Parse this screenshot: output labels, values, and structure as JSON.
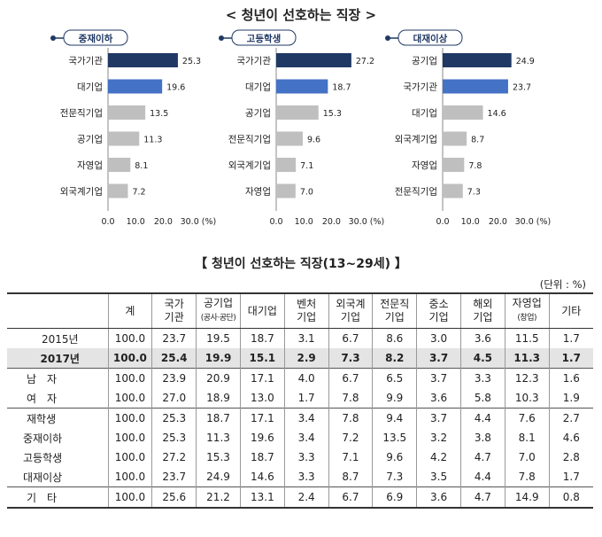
{
  "title": "< 청년이 선호하는 직장 >",
  "chart_data": [
    {
      "type": "bar",
      "orientation": "horizontal",
      "title": "중재이하",
      "categories": [
        "국가기관",
        "대기업",
        "전문직기업",
        "공기업",
        "자영업",
        "외국계기업"
      ],
      "values": [
        25.3,
        19.6,
        13.5,
        11.3,
        8.1,
        7.2
      ],
      "xlim": [
        0,
        30
      ],
      "xticks": [
        "0.0",
        "10.0",
        "20.0",
        "30.0 (%)"
      ],
      "colors": [
        "#1f3864",
        "#4472c4",
        "#bfbfbf",
        "#bfbfbf",
        "#bfbfbf",
        "#bfbfbf"
      ]
    },
    {
      "type": "bar",
      "orientation": "horizontal",
      "title": "고등학생",
      "categories": [
        "국가기관",
        "대기업",
        "공기업",
        "전문직기업",
        "외국계기업",
        "자영업"
      ],
      "values": [
        27.2,
        18.7,
        15.3,
        9.6,
        7.1,
        7.0
      ],
      "xlim": [
        0,
        30
      ],
      "xticks": [
        "0.0",
        "10.0",
        "20.0",
        "30.0 (%)"
      ],
      "colors": [
        "#1f3864",
        "#4472c4",
        "#bfbfbf",
        "#bfbfbf",
        "#bfbfbf",
        "#bfbfbf"
      ]
    },
    {
      "type": "bar",
      "orientation": "horizontal",
      "title": "대재이상",
      "categories": [
        "공기업",
        "국가기관",
        "대기업",
        "외국계기업",
        "자영업",
        "전문직기업"
      ],
      "values": [
        24.9,
        23.7,
        14.6,
        8.7,
        7.8,
        7.3
      ],
      "xlim": [
        0,
        30
      ],
      "xticks": [
        "0.0",
        "10.0",
        "20.0",
        "30.0 (%)"
      ],
      "colors": [
        "#1f3864",
        "#4472c4",
        "#bfbfbf",
        "#bfbfbf",
        "#bfbfbf",
        "#bfbfbf"
      ]
    }
  ],
  "table": {
    "title": "【 청년이 선호하는 직장(13~29세) 】",
    "unit": "(단위 : %)",
    "headers": [
      "계",
      "국가\n기관",
      "공기업",
      "대기업",
      "벤처\n기업",
      "외국계\n기업",
      "전문직\n기업",
      "중소\n기업",
      "해외\n기업",
      "자영업",
      "기타"
    ],
    "header_subs": {
      "공기업": "(공사·공단)",
      "자영업": "(창업)"
    },
    "rows": [
      {
        "label": "2015년",
        "values": [
          "100.0",
          "23.7",
          "19.5",
          "18.7",
          "3.1",
          "6.7",
          "8.6",
          "3.0",
          "3.6",
          "11.5",
          "1.7"
        ]
      },
      {
        "label": "2017년",
        "values": [
          "100.0",
          "25.4",
          "19.9",
          "15.1",
          "2.9",
          "7.3",
          "8.2",
          "3.7",
          "4.5",
          "11.3",
          "1.7"
        ]
      },
      {
        "label": "남　자",
        "values": [
          "100.0",
          "23.9",
          "20.9",
          "17.1",
          "4.0",
          "6.7",
          "6.5",
          "3.7",
          "3.3",
          "12.3",
          "1.6"
        ]
      },
      {
        "label": "여　자",
        "values": [
          "100.0",
          "27.0",
          "18.9",
          "13.0",
          "1.7",
          "7.8",
          "9.9",
          "3.6",
          "5.8",
          "10.3",
          "1.9"
        ]
      },
      {
        "label": "재학생",
        "values": [
          "100.0",
          "25.3",
          "18.7",
          "17.1",
          "3.4",
          "7.8",
          "9.4",
          "3.7",
          "4.4",
          "7.6",
          "2.7"
        ]
      },
      {
        "label": "중재이하",
        "values": [
          "100.0",
          "25.3",
          "11.3",
          "19.6",
          "3.4",
          "7.2",
          "13.5",
          "3.2",
          "3.8",
          "8.1",
          "4.6"
        ]
      },
      {
        "label": "고등학생",
        "values": [
          "100.0",
          "27.2",
          "15.3",
          "18.7",
          "3.3",
          "7.1",
          "9.6",
          "4.2",
          "4.7",
          "7.0",
          "2.8"
        ]
      },
      {
        "label": "대재이상",
        "values": [
          "100.0",
          "23.7",
          "24.9",
          "14.6",
          "3.3",
          "8.7",
          "7.3",
          "3.5",
          "4.4",
          "7.8",
          "1.7"
        ]
      },
      {
        "label": "기　타",
        "values": [
          "100.0",
          "25.6",
          "21.2",
          "13.1",
          "2.4",
          "6.7",
          "6.9",
          "3.6",
          "4.7",
          "14.9",
          "0.8"
        ]
      }
    ]
  }
}
